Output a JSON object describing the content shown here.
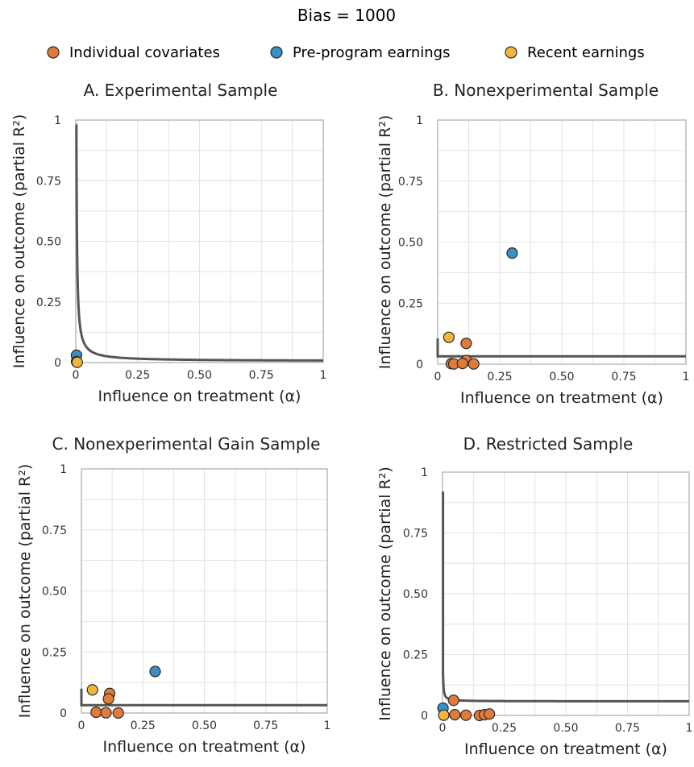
{
  "title": "Bias = 1000",
  "legend": [
    {
      "label": "Individual covariates",
      "color": "#e07b39"
    },
    {
      "label": "Pre-program earnings",
      "color": "#3a8fc6"
    },
    {
      "label": "Recent earnings",
      "color": "#f2b73a"
    }
  ],
  "colors": {
    "curve": "#555555",
    "grid": "#e3e3e3",
    "frame": "#bbbbbb",
    "point_edge": "#2b2b2b"
  },
  "chart_data": [
    {
      "type": "scatter",
      "title": "A. Experimental Sample",
      "xlabel": "Influence on treatment (α)",
      "ylabel": "Influence on outcome (partial R²)",
      "xlim": [
        0,
        1
      ],
      "ylim": [
        0,
        1
      ],
      "xticks": [
        "0",
        "0.25",
        "0.50",
        "0.75",
        "1"
      ],
      "yticks": [
        "0",
        "0.25",
        "0.50",
        "0.75",
        "1"
      ],
      "grid": true,
      "curve": {
        "k": 0.0025,
        "x0": 0.0025,
        "vertical_to": 0.98,
        "floor": 0.006
      },
      "points": [
        {
          "x": 0.003,
          "y": 0.03,
          "group": "Pre-program earnings"
        },
        {
          "x": 0.003,
          "y": 0.004,
          "group": "Individual covariates"
        },
        {
          "x": 0.006,
          "y": 0.001,
          "group": "Recent earnings"
        }
      ]
    },
    {
      "type": "scatter",
      "title": "B. Nonexperimental Sample",
      "xlabel": "Influence on treatment (α)",
      "ylabel": "Influence on outcome (partial R²)",
      "xlim": [
        0,
        1
      ],
      "ylim": [
        0,
        1
      ],
      "xticks": [
        "0",
        "0.25",
        "0.50",
        "0.75",
        "1"
      ],
      "yticks": [
        "0",
        "0.25",
        "0.50",
        "0.75",
        "1"
      ],
      "grid": true,
      "curve": {
        "k": 0.0,
        "x0": 0.0,
        "vertical_to": 0.105,
        "floor": 0.032
      },
      "points": [
        {
          "x": 0.3,
          "y": 0.455,
          "group": "Pre-program earnings"
        },
        {
          "x": 0.045,
          "y": 0.11,
          "group": "Recent earnings"
        },
        {
          "x": 0.115,
          "y": 0.085,
          "group": "Individual covariates"
        },
        {
          "x": 0.115,
          "y": 0.015,
          "group": "Individual covariates"
        },
        {
          "x": 0.055,
          "y": 0.002,
          "group": "Individual covariates"
        },
        {
          "x": 0.065,
          "y": 0.001,
          "group": "Individual covariates"
        },
        {
          "x": 0.1,
          "y": 0.003,
          "group": "Individual covariates"
        },
        {
          "x": 0.145,
          "y": 0.001,
          "group": "Individual covariates"
        }
      ]
    },
    {
      "type": "scatter",
      "title": "C. Nonexperimental Gain Sample",
      "xlabel": "Influence on treatment (α)",
      "ylabel": "Influence on outcome (partial R²)",
      "xlim": [
        0,
        1
      ],
      "ylim": [
        0,
        1
      ],
      "xticks": [
        "0",
        "0.25",
        "0.50",
        "0.75",
        "1"
      ],
      "yticks": [
        "0",
        "0.25",
        "0.50",
        "0.75",
        "1"
      ],
      "grid": true,
      "curve": {
        "k": 0.0,
        "x0": 0.0,
        "vertical_to": 0.1,
        "floor": 0.032
      },
      "points": [
        {
          "x": 0.3,
          "y": 0.17,
          "group": "Pre-program earnings"
        },
        {
          "x": 0.045,
          "y": 0.095,
          "group": "Recent earnings"
        },
        {
          "x": 0.115,
          "y": 0.08,
          "group": "Individual covariates"
        },
        {
          "x": 0.11,
          "y": 0.058,
          "group": "Individual covariates"
        },
        {
          "x": 0.06,
          "y": 0.003,
          "group": "Individual covariates"
        },
        {
          "x": 0.1,
          "y": 0.001,
          "group": "Individual covariates"
        },
        {
          "x": 0.15,
          "y": 0.0,
          "group": "Individual covariates"
        }
      ]
    },
    {
      "type": "scatter",
      "title": "D. Restricted Sample",
      "xlabel": "Influence on treatment (α)",
      "ylabel": "Influence on outcome (partial R²)",
      "xlim": [
        0,
        1
      ],
      "ylim": [
        0,
        1
      ],
      "xticks": [
        "0",
        "0.25",
        "0.50",
        "0.75",
        "1"
      ],
      "yticks": [
        "0",
        "0.25",
        "0.50",
        "0.75",
        "1"
      ],
      "grid": true,
      "curve": {
        "k": 0.00025,
        "x0": 0.002,
        "vertical_to": 0.92,
        "floor": 0.058
      },
      "points": [
        {
          "x": 0.002,
          "y": 0.03,
          "group": "Pre-program earnings"
        },
        {
          "x": 0.045,
          "y": 0.062,
          "group": "Individual covariates"
        },
        {
          "x": 0.05,
          "y": 0.003,
          "group": "Individual covariates"
        },
        {
          "x": 0.095,
          "y": 0.001,
          "group": "Individual covariates"
        },
        {
          "x": 0.15,
          "y": 0.0,
          "group": "Individual covariates"
        },
        {
          "x": 0.17,
          "y": 0.003,
          "group": "Individual covariates"
        },
        {
          "x": 0.19,
          "y": 0.006,
          "group": "Individual covariates"
        },
        {
          "x": 0.005,
          "y": 0.001,
          "group": "Recent earnings"
        }
      ]
    }
  ]
}
